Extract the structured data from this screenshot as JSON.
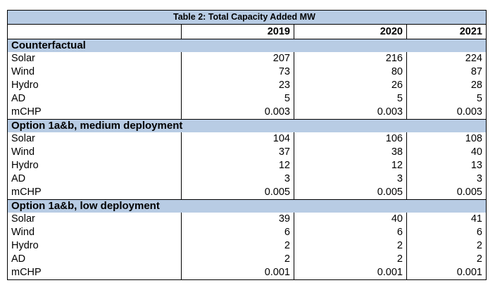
{
  "table": {
    "caption": "Table 2: Total Capacity Added MW",
    "years": [
      "2019",
      "2020",
      "2021"
    ],
    "sections": [
      {
        "title": "Counterfactual",
        "rows": [
          {
            "label": "Solar",
            "values": [
              "207",
              "216",
              "224"
            ]
          },
          {
            "label": "Wind",
            "values": [
              "73",
              "80",
              "87"
            ]
          },
          {
            "label": "Hydro",
            "values": [
              "23",
              "26",
              "28"
            ]
          },
          {
            "label": "AD",
            "values": [
              "5",
              "5",
              "5"
            ]
          },
          {
            "label": "mCHP",
            "values": [
              "0.003",
              "0.003",
              "0.003"
            ]
          }
        ]
      },
      {
        "title": "Option 1a&b, medium deployment",
        "rows": [
          {
            "label": "Solar",
            "values": [
              "104",
              "106",
              "108"
            ]
          },
          {
            "label": "Wind",
            "values": [
              "37",
              "38",
              "40"
            ]
          },
          {
            "label": "Hydro",
            "values": [
              "12",
              "12",
              "13"
            ]
          },
          {
            "label": "AD",
            "values": [
              "3",
              "3",
              "3"
            ]
          },
          {
            "label": "mCHP",
            "values": [
              "0.005",
              "0.005",
              "0.005"
            ]
          }
        ]
      },
      {
        "title": "Option 1a&b, low deployment",
        "rows": [
          {
            "label": "Solar",
            "values": [
              "39",
              "40",
              "41"
            ]
          },
          {
            "label": "Wind",
            "values": [
              "6",
              "6",
              "6"
            ]
          },
          {
            "label": "Hydro",
            "values": [
              "2",
              "2",
              "2"
            ]
          },
          {
            "label": "AD",
            "values": [
              "2",
              "2",
              "2"
            ]
          },
          {
            "label": "mCHP",
            "values": [
              "0.001",
              "0.001",
              "0.001"
            ]
          }
        ]
      }
    ]
  }
}
